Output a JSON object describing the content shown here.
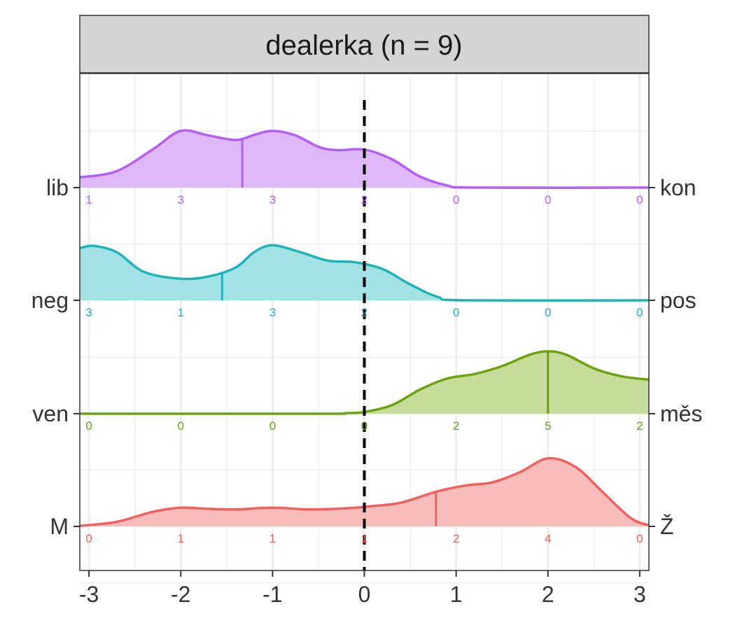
{
  "chart_data": {
    "type": "ridgeline-density",
    "title": "dealerka (n = 9)",
    "xlim": [
      -3.1,
      3.1
    ],
    "x_ticks": [
      "-3",
      "-2",
      "-1",
      "0",
      "1",
      "2",
      "3"
    ],
    "reference_line": 0,
    "grid": true,
    "count_positions": [
      -3,
      -2,
      -1,
      0,
      1,
      2,
      3
    ],
    "series": [
      {
        "left_label": "lib",
        "right_label": "kon",
        "color": "#b45ef5",
        "fill": "#deb8f8",
        "counts": [
          "1",
          "3",
          "3",
          "2",
          "0",
          "0",
          "0"
        ],
        "mean": -1.33,
        "density": [
          [
            -3.1,
            0.18
          ],
          [
            -2.7,
            0.29
          ],
          [
            -2.3,
            0.68
          ],
          [
            -2.0,
            1.0
          ],
          [
            -1.7,
            0.92
          ],
          [
            -1.4,
            0.84
          ],
          [
            -1.2,
            0.93
          ],
          [
            -1.0,
            1.0
          ],
          [
            -0.75,
            0.92
          ],
          [
            -0.5,
            0.72
          ],
          [
            -0.3,
            0.66
          ],
          [
            0,
            0.67
          ],
          [
            0.3,
            0.5
          ],
          [
            0.6,
            0.2
          ],
          [
            0.9,
            0.04
          ],
          [
            1.2,
            0.0
          ],
          [
            3.1,
            0.0
          ]
        ]
      },
      {
        "left_label": "neg",
        "right_label": "pos",
        "color": "#1fb3b8",
        "fill": "#a3e2e4",
        "counts": [
          "3",
          "1",
          "3",
          "2",
          "0",
          "0",
          "0"
        ],
        "mean": -1.55,
        "density": [
          [
            -3.1,
            0.92
          ],
          [
            -2.95,
            0.96
          ],
          [
            -2.7,
            0.85
          ],
          [
            -2.4,
            0.5
          ],
          [
            -2.0,
            0.38
          ],
          [
            -1.7,
            0.42
          ],
          [
            -1.4,
            0.58
          ],
          [
            -1.2,
            0.85
          ],
          [
            -1.0,
            0.97
          ],
          [
            -0.7,
            0.85
          ],
          [
            -0.4,
            0.7
          ],
          [
            -0.1,
            0.67
          ],
          [
            0.2,
            0.55
          ],
          [
            0.5,
            0.28
          ],
          [
            0.8,
            0.06
          ],
          [
            1.1,
            0.0
          ],
          [
            3.1,
            0.0
          ]
        ]
      },
      {
        "left_label": "ven",
        "right_label": "měs",
        "color": "#6aa30f",
        "fill": "#c6dc9b",
        "counts": [
          "0",
          "0",
          "0",
          "0",
          "2",
          "5",
          "2"
        ],
        "mean": 2.0,
        "density": [
          [
            -3.1,
            0.0
          ],
          [
            -0.5,
            0.0
          ],
          [
            -0.2,
            0.01
          ],
          [
            0.0,
            0.03
          ],
          [
            0.3,
            0.15
          ],
          [
            0.6,
            0.42
          ],
          [
            0.9,
            0.62
          ],
          [
            1.2,
            0.7
          ],
          [
            1.5,
            0.84
          ],
          [
            1.8,
            1.04
          ],
          [
            2.0,
            1.1
          ],
          [
            2.2,
            1.04
          ],
          [
            2.5,
            0.8
          ],
          [
            2.8,
            0.66
          ],
          [
            3.1,
            0.6
          ]
        ]
      },
      {
        "left_label": "M",
        "right_label": "Ž",
        "color": "#f0605d",
        "fill": "#f8bcbb",
        "counts": [
          "0",
          "1",
          "1",
          "1",
          "2",
          "4",
          "0"
        ],
        "mean": 0.78,
        "density": [
          [
            -3.1,
            0.01
          ],
          [
            -2.7,
            0.08
          ],
          [
            -2.3,
            0.26
          ],
          [
            -2.0,
            0.33
          ],
          [
            -1.7,
            0.31
          ],
          [
            -1.4,
            0.3
          ],
          [
            -1.0,
            0.33
          ],
          [
            -0.6,
            0.3
          ],
          [
            -0.2,
            0.32
          ],
          [
            0.1,
            0.36
          ],
          [
            0.4,
            0.42
          ],
          [
            0.8,
            0.62
          ],
          [
            1.1,
            0.72
          ],
          [
            1.4,
            0.78
          ],
          [
            1.7,
            0.96
          ],
          [
            2.0,
            1.2
          ],
          [
            2.3,
            1.05
          ],
          [
            2.6,
            0.6
          ],
          [
            2.9,
            0.15
          ],
          [
            3.1,
            0.02
          ]
        ]
      }
    ]
  }
}
